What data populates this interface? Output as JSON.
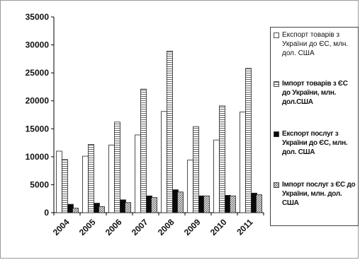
{
  "chart_data": {
    "type": "bar",
    "categories": [
      "2004",
      "2005",
      "2006",
      "2007",
      "2008",
      "2009",
      "2010",
      "2011"
    ],
    "series": [
      {
        "name": "Експорт товарів з України до ЄС, млн. дол. США",
        "pattern": "white",
        "values": [
          11000,
          10100,
          12100,
          13900,
          18100,
          9400,
          13000,
          18000
        ]
      },
      {
        "name": "Імпорт товарів з ЄС до України, млн. дол.США",
        "pattern": "hstripes",
        "values": [
          9500,
          12200,
          16200,
          22100,
          28900,
          15400,
          19100,
          25800
        ]
      },
      {
        "name": "Експорт послуг з України до ЄС, млн. дол. США",
        "pattern": "black",
        "values": [
          1500,
          1700,
          2300,
          3000,
          4100,
          3000,
          3100,
          3500
        ]
      },
      {
        "name": "Імпорт послуг з ЄС до України, млн. дол. США",
        "pattern": "diagonal",
        "values": [
          800,
          1100,
          1800,
          2700,
          3700,
          3000,
          3000,
          3200
        ]
      }
    ],
    "yticks": [
      0,
      5000,
      10000,
      15000,
      20000,
      25000,
      30000,
      35000
    ],
    "ylim": [
      0,
      35000
    ],
    "grid": false,
    "legend_position": "right"
  }
}
